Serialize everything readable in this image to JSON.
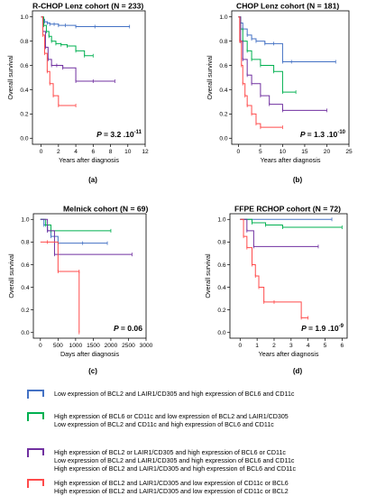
{
  "chart_data": [
    {
      "type": "line",
      "title": "R-CHOP Lenz cohort (N = 233)",
      "xlabel": "Years after diagnosis",
      "ylabel": "Overall survival",
      "xlim": [
        -1,
        12
      ],
      "ylim": [
        -0.05,
        1.05
      ],
      "xticks": [
        "0",
        "2",
        "4",
        "6",
        "8",
        "10",
        "12"
      ],
      "yticks": [
        "0.0",
        "0.2",
        "0.4",
        "0.6",
        "0.8",
        "1.0"
      ],
      "p_prefix": "P",
      "p_value": "= 3.2 .10",
      "p_exp": "-11",
      "caption": "(a)",
      "series": [
        {
          "color": "#4472c4",
          "x": [
            0,
            0.2,
            0.4,
            0.7,
            1.0,
            1.5,
            2.0,
            2.8,
            4.0,
            6.2,
            10.2
          ],
          "y": [
            1.0,
            0.98,
            0.96,
            0.95,
            0.94,
            0.94,
            0.93,
            0.93,
            0.92,
            0.92,
            0.92
          ]
        },
        {
          "color": "#00b050",
          "x": [
            0,
            0.3,
            0.6,
            0.9,
            1.2,
            1.7,
            2.3,
            3.0,
            4.0,
            5.0,
            6.0
          ],
          "y": [
            1.0,
            0.93,
            0.88,
            0.84,
            0.8,
            0.78,
            0.77,
            0.76,
            0.72,
            0.68,
            0.68
          ]
        },
        {
          "color": "#7030a0",
          "x": [
            0,
            0.2,
            0.5,
            0.8,
            1.2,
            1.8,
            2.5,
            4.0,
            6.0,
            8.5
          ],
          "y": [
            1.0,
            0.88,
            0.75,
            0.65,
            0.6,
            0.6,
            0.58,
            0.47,
            0.47,
            0.47
          ]
        },
        {
          "color": "#ff4b4b",
          "x": [
            0,
            0.2,
            0.4,
            0.7,
            1.0,
            1.4,
            2.0,
            4.0
          ],
          "y": [
            1.0,
            0.85,
            0.7,
            0.55,
            0.45,
            0.35,
            0.27,
            0.27
          ]
        }
      ]
    },
    {
      "type": "line",
      "title": "CHOP Lenz cohort (N = 181)",
      "xlabel": "Years after diagnosis",
      "ylabel": "Overall survival",
      "xlim": [
        -1.5,
        25
      ],
      "ylim": [
        -0.05,
        1.05
      ],
      "xticks": [
        "0",
        "5",
        "10",
        "15",
        "20",
        "25"
      ],
      "yticks": [
        "0.0",
        "0.2",
        "0.4",
        "0.6",
        "0.8",
        "1.0"
      ],
      "p_prefix": "P",
      "p_value": "= 1.3 .10",
      "p_exp": "-10",
      "caption": "(b)",
      "series": [
        {
          "color": "#4472c4",
          "x": [
            0,
            0.5,
            1.0,
            2.0,
            3.0,
            4.0,
            6.0,
            8.0,
            10.0,
            12.0,
            22.0
          ],
          "y": [
            1.0,
            0.95,
            0.9,
            0.85,
            0.82,
            0.8,
            0.78,
            0.78,
            0.63,
            0.63,
            0.63
          ]
        },
        {
          "color": "#00b050",
          "x": [
            0,
            0.5,
            1.0,
            2.0,
            3.0,
            5.0,
            8.0,
            10.0,
            13.0
          ],
          "y": [
            1.0,
            0.9,
            0.8,
            0.72,
            0.65,
            0.6,
            0.55,
            0.38,
            0.38
          ]
        },
        {
          "color": "#7030a0",
          "x": [
            0,
            0.5,
            1.0,
            2.0,
            3.0,
            5.0,
            7.0,
            10.0,
            20.0
          ],
          "y": [
            1.0,
            0.8,
            0.65,
            0.52,
            0.45,
            0.35,
            0.28,
            0.23,
            0.23
          ]
        },
        {
          "color": "#ff4b4b",
          "x": [
            0,
            0.3,
            0.7,
            1.0,
            1.5,
            2.0,
            3.0,
            4.0,
            5.0,
            10.0
          ],
          "y": [
            1.0,
            0.8,
            0.6,
            0.45,
            0.35,
            0.27,
            0.2,
            0.12,
            0.09,
            0.09
          ]
        }
      ]
    },
    {
      "type": "line",
      "title": "Melnick cohort (N = 69)",
      "xlabel": "Days after diagnosis",
      "ylabel": "Overall survival",
      "xlim": [
        -200,
        3000
      ],
      "ylim": [
        -0.05,
        1.05
      ],
      "xticks": [
        "0",
        "500",
        "1000",
        "1500",
        "2000",
        "2500",
        "3000"
      ],
      "yticks": [
        "0.0",
        "0.2",
        "0.4",
        "0.6",
        "0.8",
        "1.0"
      ],
      "p_prefix": "P",
      "p_value": "= 0.06",
      "p_exp": "",
      "caption": "(c)",
      "series": [
        {
          "color": "#4472c4",
          "x": [
            0,
            100,
            200,
            300,
            500,
            1200,
            1900
          ],
          "y": [
            1.0,
            0.95,
            0.9,
            0.85,
            0.79,
            0.79,
            0.79
          ]
        },
        {
          "color": "#00b050",
          "x": [
            0,
            150,
            300,
            2000
          ],
          "y": [
            1.0,
            0.95,
            0.9,
            0.9
          ]
        },
        {
          "color": "#7030a0",
          "x": [
            0,
            200,
            400,
            2600
          ],
          "y": [
            1.0,
            0.9,
            0.69,
            0.69
          ]
        },
        {
          "color": "#ff4b4b",
          "x": [
            0,
            200,
            500,
            1100,
            1100
          ],
          "y": [
            0.8,
            0.8,
            0.54,
            0.54,
            0.0
          ]
        }
      ]
    },
    {
      "type": "line",
      "title": "FFPE RCHOP cohort (N = 72)",
      "xlabel": "Years after diagnosis",
      "ylabel": "Overall survival",
      "xlim": [
        -0.6,
        6.3
      ],
      "ylim": [
        -0.05,
        1.05
      ],
      "xticks": [
        "0",
        "1",
        "2",
        "3",
        "4",
        "5",
        "6"
      ],
      "yticks": [
        "0.0",
        "0.2",
        "0.4",
        "0.6",
        "0.8",
        "1.0"
      ],
      "p_prefix": "P",
      "p_value": "= 1.9 .10",
      "p_exp": "-9",
      "caption": "(d)",
      "series": [
        {
          "color": "#4472c4",
          "x": [
            0,
            5.4
          ],
          "y": [
            1.0,
            1.0
          ]
        },
        {
          "color": "#00b050",
          "x": [
            0,
            0.7,
            1.5,
            2.5,
            6.0
          ],
          "y": [
            1.0,
            0.97,
            0.95,
            0.93,
            0.93
          ]
        },
        {
          "color": "#7030a0",
          "x": [
            0,
            0.4,
            0.8,
            4.6
          ],
          "y": [
            1.0,
            0.9,
            0.76,
            0.76
          ]
        },
        {
          "color": "#ff4b4b",
          "x": [
            0,
            0.2,
            0.4,
            0.7,
            0.9,
            1.1,
            1.4,
            2.0,
            3.6,
            4.0
          ],
          "y": [
            1.0,
            0.85,
            0.75,
            0.6,
            0.5,
            0.4,
            0.27,
            0.27,
            0.13,
            0.13
          ]
        }
      ]
    }
  ],
  "legend": [
    {
      "color": "#4472c4",
      "lines": [
        "Low expression of BCL2 and LAIR1/CD305 and high expression of BCL6 and CD11c"
      ]
    },
    {
      "color": "#00b050",
      "lines": [
        "High expression of BCL6 or CD11c  and low expression of BCL2 and LAIR1/CD305",
        "Low expression of BCL2 and CD11c and high expression of BCL6 and CD11c"
      ]
    },
    {
      "color": "#7030a0",
      "lines": [
        "High expression of BCL2 or LAIR1/CD305 and high expression of BCL6 or CD11c",
        "Low expression of BCL2 and LAIR1/CD305 and high expression of BCL6 and CD11c",
        "High expression of BCL2 and LAIR1/CD305 and high expression of BCL6 and CD11c"
      ]
    },
    {
      "color": "#ff4b4b",
      "lines": [
        "High expression of BCL2 and LAIR1/CD305 and low expression of CD11c or BCL6",
        "High expression of BCL2 and LAIR1/CD305 and low expression of CD11c or BCL2"
      ]
    }
  ]
}
